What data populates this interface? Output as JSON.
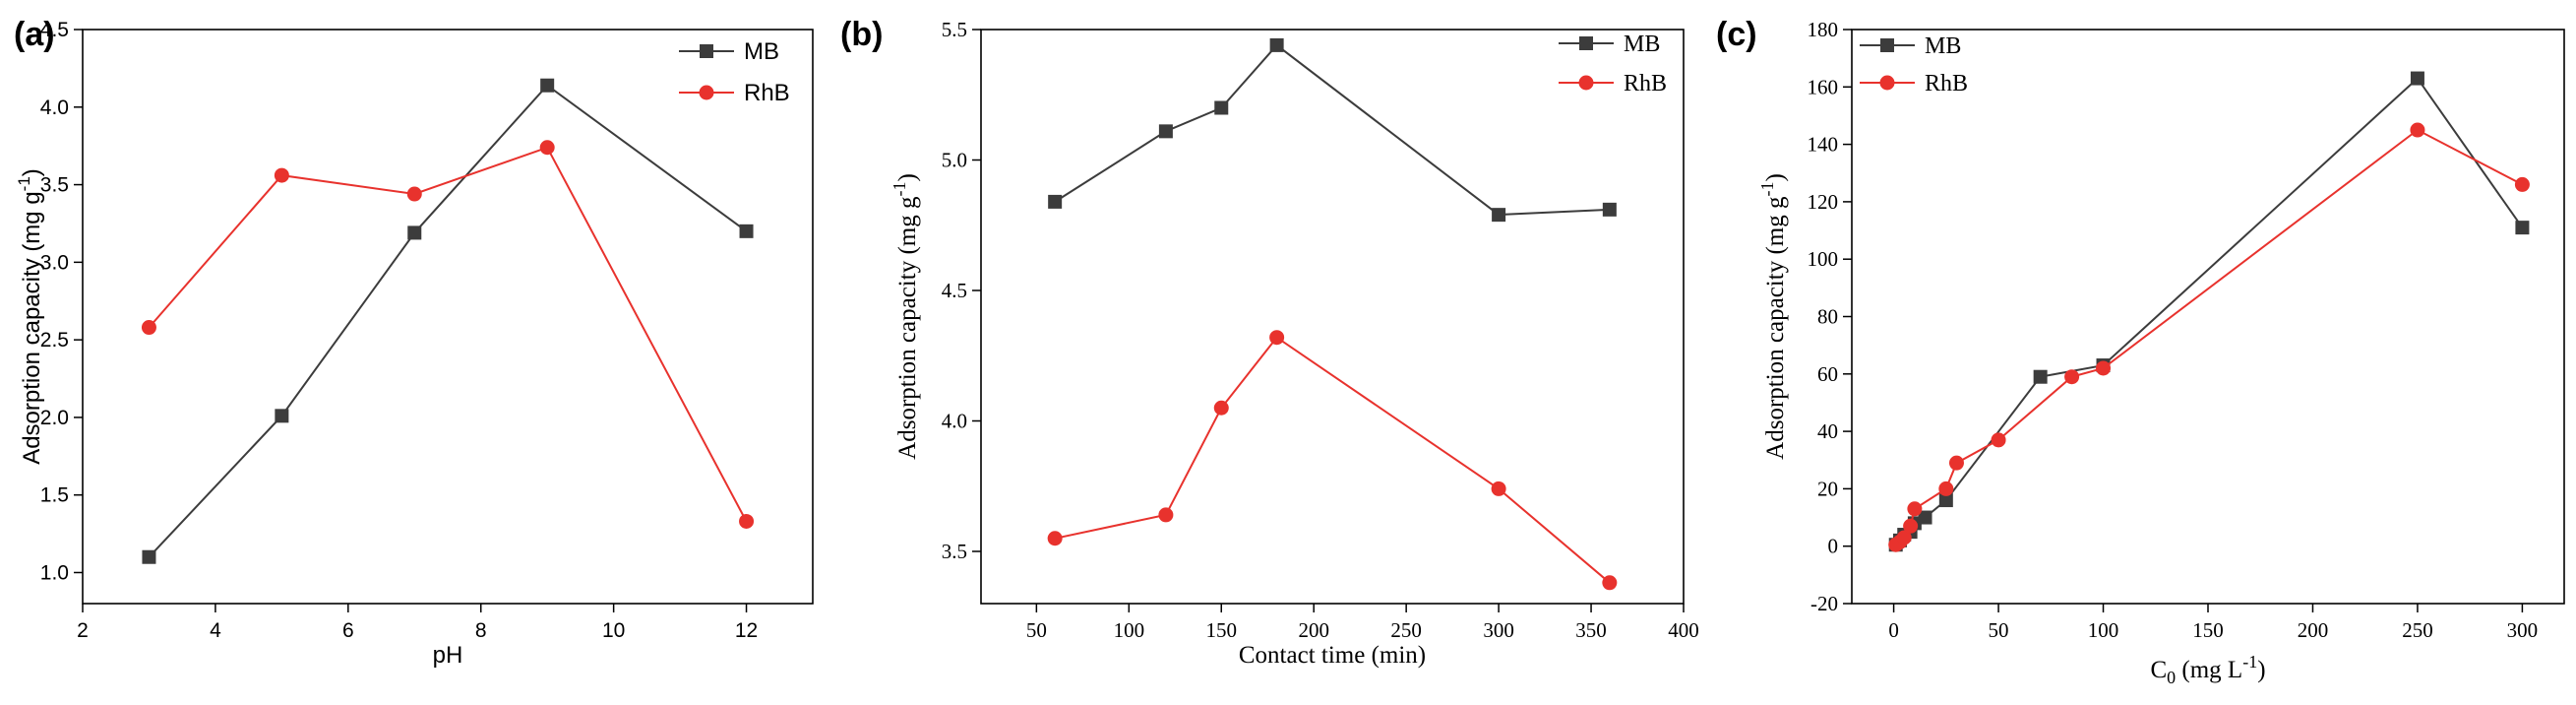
{
  "colors": {
    "mb": "#3c3c3c",
    "rhb": "#e8322d",
    "axis": "#000000"
  },
  "chart_data": [
    {
      "type": "line",
      "panel_label": "(a)",
      "xlabel": "pH",
      "ylabel_main": "Adsorption capacity (mg g",
      "ylabel_sup": "-1",
      "ylabel_end": ")",
      "xlim": [
        2,
        13
      ],
      "ylim": [
        0.8,
        4.5
      ],
      "xticks": [
        2,
        4,
        6,
        8,
        10,
        12
      ],
      "xtick_labels": [
        "2",
        "4",
        "6",
        "8",
        "10",
        "12"
      ],
      "yticks": [
        1.0,
        1.5,
        2.0,
        2.5,
        3.0,
        3.5,
        4.0,
        4.5
      ],
      "ytick_labels": [
        "1.0",
        "1.5",
        "2.0",
        "2.5",
        "3.0",
        "3.5",
        "4.0",
        "4.5"
      ],
      "grid": false,
      "legend_position": "top-right",
      "series": [
        {
          "name": "MB",
          "marker": "square",
          "x": [
            3,
            5,
            7,
            9,
            12
          ],
          "y": [
            1.1,
            2.01,
            3.19,
            4.14,
            3.2
          ]
        },
        {
          "name": "RhB",
          "marker": "circle",
          "x": [
            3,
            5,
            7,
            9,
            12
          ],
          "y": [
            2.58,
            3.56,
            3.44,
            3.74,
            1.33
          ]
        }
      ]
    },
    {
      "type": "line",
      "panel_label": "(b)",
      "xlabel": "Contact time (min)",
      "ylabel_main": "Adsorption capacity (mg g",
      "ylabel_sup": "-1",
      "ylabel_end": ")",
      "xlim": [
        20,
        400
      ],
      "ylim": [
        3.3,
        5.5
      ],
      "xticks": [
        50,
        100,
        150,
        200,
        250,
        300,
        350,
        400
      ],
      "xtick_labels": [
        "50",
        "100",
        "150",
        "200",
        "250",
        "300",
        "350",
        "400"
      ],
      "yticks": [
        3.5,
        4.0,
        4.5,
        5.0,
        5.5
      ],
      "ytick_labels": [
        "3.5",
        "4.0",
        "4.5",
        "5.0",
        "5.5"
      ],
      "grid": false,
      "legend_position": "top-right",
      "series": [
        {
          "name": "MB",
          "marker": "square",
          "x": [
            60,
            120,
            150,
            180,
            300,
            360
          ],
          "y": [
            4.84,
            5.11,
            5.2,
            5.44,
            4.79,
            4.81
          ]
        },
        {
          "name": "RhB",
          "marker": "circle",
          "x": [
            60,
            120,
            150,
            180,
            300,
            360
          ],
          "y": [
            3.55,
            3.64,
            4.05,
            4.32,
            3.74,
            3.38
          ]
        }
      ]
    },
    {
      "type": "line",
      "panel_label": "(c)",
      "xlabel_main": "C",
      "xlabel_sub": "0",
      "xlabel_mid": " (mg L",
      "xlabel_sup": "-1",
      "xlabel_end": ")",
      "ylabel_main": "Adsorption capacity (mg g",
      "ylabel_sup": "-1",
      "ylabel_end": ")",
      "xlim": [
        -20,
        320
      ],
      "ylim": [
        -20,
        180
      ],
      "xticks": [
        0,
        50,
        100,
        150,
        200,
        250,
        300
      ],
      "xtick_labels": [
        "0",
        "50",
        "100",
        "150",
        "200",
        "250",
        "300"
      ],
      "yticks": [
        -20,
        0,
        20,
        40,
        60,
        80,
        100,
        120,
        140,
        160,
        180
      ],
      "ytick_labels": [
        "-20",
        "0",
        "20",
        "40",
        "60",
        "80",
        "100",
        "120",
        "140",
        "160",
        "180"
      ],
      "grid": false,
      "legend_position": "top-left",
      "series": [
        {
          "name": "MB",
          "marker": "square",
          "x": [
            1,
            3,
            5,
            8,
            10,
            15,
            25,
            70,
            100,
            250,
            300
          ],
          "y": [
            0.5,
            2,
            4,
            5,
            8,
            10,
            16,
            59,
            63,
            163,
            111
          ]
        },
        {
          "name": "RhB",
          "marker": "circle",
          "x": [
            1,
            3,
            5,
            8,
            10,
            25,
            30,
            50,
            85,
            100,
            250,
            300
          ],
          "y": [
            0.5,
            1.5,
            3,
            7,
            13,
            20,
            29,
            37,
            59,
            62,
            145,
            126
          ]
        }
      ]
    }
  ]
}
